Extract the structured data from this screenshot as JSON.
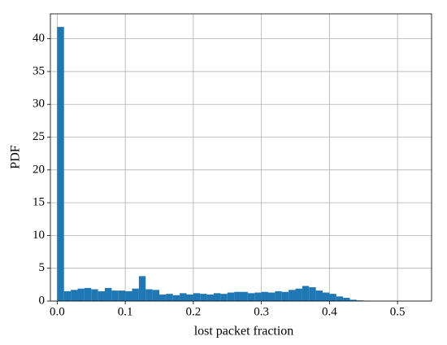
{
  "chart_data": {
    "type": "histogram",
    "xlabel": "lost packet fraction",
    "ylabel": "PDF",
    "bins": [
      0,
      0.01,
      0.02,
      0.03,
      0.04,
      0.05,
      0.06,
      0.07,
      0.08,
      0.09,
      0.1,
      0.11,
      0.12,
      0.13,
      0.14,
      0.15,
      0.16,
      0.17,
      0.18,
      0.19,
      0.2,
      0.21,
      0.22,
      0.23,
      0.24,
      0.25,
      0.26,
      0.27,
      0.28,
      0.29,
      0.3,
      0.31,
      0.32,
      0.33,
      0.34,
      0.35,
      0.36,
      0.37,
      0.38,
      0.39,
      0.4,
      0.41,
      0.42,
      0.43,
      0.44,
      0.45,
      0.46,
      0.47,
      0.48,
      0.49,
      0.5,
      0.51,
      0.52,
      0.53
    ],
    "values": [
      41.8,
      1.5,
      1.7,
      1.9,
      2.0,
      1.8,
      1.5,
      2.0,
      1.6,
      1.6,
      1.5,
      1.9,
      3.8,
      1.8,
      1.7,
      1.0,
      1.1,
      0.9,
      1.2,
      1.0,
      1.2,
      1.1,
      1.0,
      1.2,
      1.1,
      1.3,
      1.4,
      1.4,
      1.2,
      1.3,
      1.4,
      1.3,
      1.5,
      1.4,
      1.7,
      1.9,
      2.3,
      2.1,
      1.6,
      1.3,
      1.1,
      0.7,
      0.5,
      0.2,
      0.1,
      0.05,
      0.02,
      0.01,
      0,
      0,
      0,
      0,
      0.01
    ],
    "color": "#1f77b4",
    "xlim": [
      -0.01,
      0.55
    ],
    "xticks": [
      {
        "value": 0,
        "label": "0.0"
      },
      0.1,
      0.2,
      0.3,
      0.4,
      0.5
    ],
    "ylim": [
      0,
      43.8
    ],
    "yticks": [
      0,
      5,
      10,
      15,
      20,
      25,
      30,
      35,
      40
    ],
    "grid": true
  }
}
